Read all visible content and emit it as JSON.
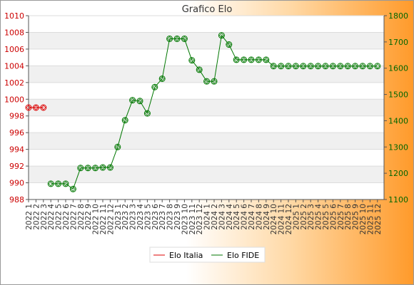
{
  "chart_data": {
    "type": "line",
    "title": "Grafico Elo",
    "categories": [
      "2022 1",
      "2022 2",
      "2022 3",
      "2022 4",
      "2022 5",
      "2022 6",
      "2022 7",
      "2022 8",
      "2022 9",
      "2022 10",
      "2022 11",
      "2022 12",
      "2023 1",
      "2023 2",
      "2023 3",
      "2023 4",
      "2023 5",
      "2023 6",
      "2023 7",
      "2023 8",
      "2023 9",
      "2023 10",
      "2023 11",
      "2023 12",
      "2024 1",
      "2024 2",
      "2024 3",
      "2024 4",
      "2024 5",
      "2024 6",
      "2024 7",
      "2024 8",
      "2024 9",
      "2024 10",
      "2024 11",
      "2024 12",
      "2025 1",
      "2025 2",
      "2025 3",
      "2025 4",
      "2025 5",
      "2025 6",
      "2025 7",
      "2025 8",
      "2025 9",
      "2025 10",
      "2025 11",
      "2025 12"
    ],
    "left_axis": {
      "min": 988,
      "max": 1010,
      "ticks": [
        988,
        990,
        992,
        994,
        996,
        998,
        1000,
        1002,
        1004,
        1006,
        1008,
        1010
      ]
    },
    "right_axis": {
      "min": 1100,
      "max": 1800,
      "ticks": [
        1100,
        1200,
        1300,
        1400,
        1500,
        1600,
        1700,
        1800
      ]
    },
    "series": [
      {
        "name": "Elo Italia",
        "axis": "left",
        "color": "#dd0000",
        "values": [
          999,
          999,
          999,
          null,
          null,
          null,
          null,
          null,
          null,
          null,
          null,
          null,
          null,
          null,
          null,
          null,
          null,
          null,
          null,
          null,
          null,
          null,
          null,
          null,
          null,
          null,
          null,
          null,
          null,
          null,
          null,
          null,
          null,
          null,
          null,
          null,
          null,
          null,
          null,
          null,
          null,
          null,
          null,
          null,
          null,
          null,
          null,
          null
        ]
      },
      {
        "name": "Elo FIDE",
        "axis": "right",
        "color": "#007700",
        "values": [
          null,
          null,
          null,
          1160,
          1160,
          1160,
          1140,
          1220,
          1220,
          1220,
          1222,
          1222,
          1300,
          1402,
          1478,
          1475,
          1428,
          1528,
          1560,
          1712,
          1712,
          1712,
          1630,
          1594,
          1550,
          1550,
          1725,
          1690,
          1632,
          1632,
          1632,
          1632,
          1632,
          1608,
          1608,
          1608,
          1608,
          1608,
          1608,
          1608,
          1608,
          1608,
          1608,
          1608,
          1608,
          1608,
          1608,
          1608
        ]
      }
    ],
    "legend": "bottom",
    "grid": true
  }
}
